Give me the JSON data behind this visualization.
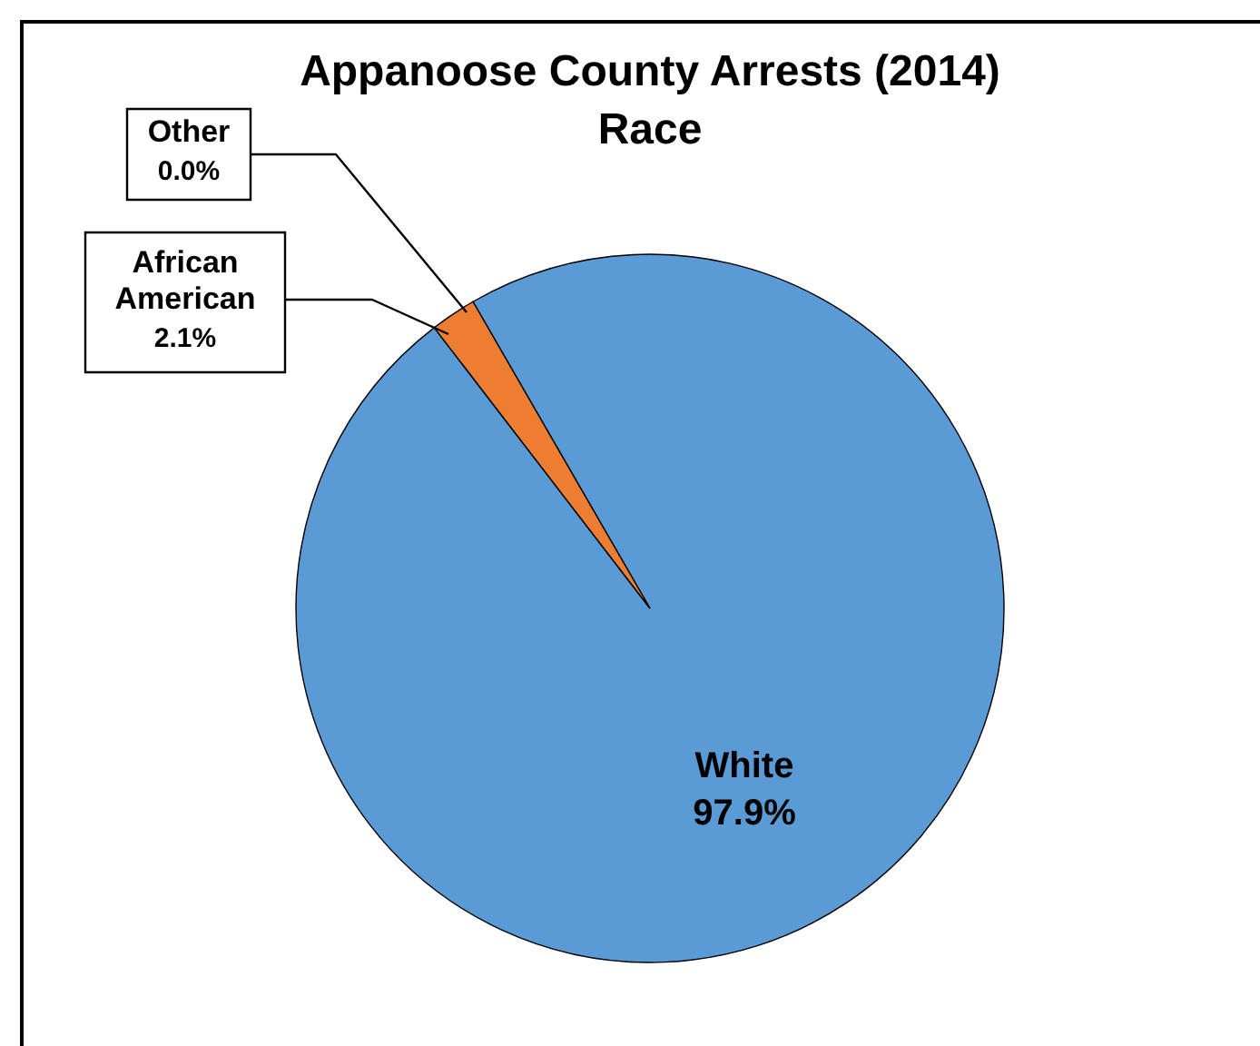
{
  "chart_data": {
    "type": "pie",
    "title": "Appanoose County Arrests (2014)",
    "subtitle": "Race",
    "categories": [
      "White",
      "African American",
      "Other"
    ],
    "values": [
      97.9,
      2.1,
      0.0
    ],
    "colors": [
      "#5b9bd5",
      "#ed7d31",
      "#a5a5a5"
    ],
    "value_labels": [
      "97.9%",
      "2.1%",
      "0.0%"
    ]
  }
}
